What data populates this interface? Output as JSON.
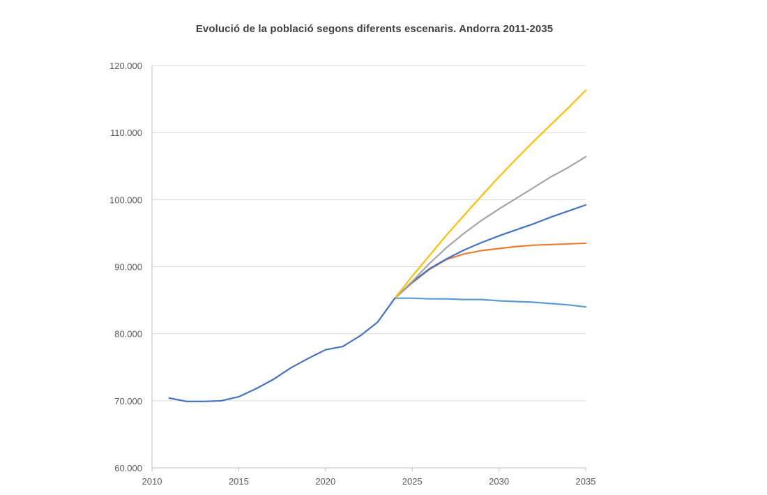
{
  "chart_data": {
    "type": "line",
    "title": "Evolució de la població segons diferents escenaris. Andorra 2011-2035",
    "xlabel": "",
    "ylabel": "",
    "xlim": [
      2010,
      2035
    ],
    "ylim": [
      60000,
      120000
    ],
    "grid": true,
    "legend": "none",
    "x_ticks": [
      2010,
      2015,
      2020,
      2025,
      2030,
      2035
    ],
    "x_tick_labels": [
      "2010",
      "2015",
      "2020",
      "2025",
      "2030",
      "2035"
    ],
    "y_ticks": [
      60000,
      70000,
      80000,
      90000,
      100000,
      110000,
      120000
    ],
    "y_tick_labels": [
      "60.000",
      "70.000",
      "80.000",
      "90.000",
      "100.000",
      "110.000",
      "120.000"
    ],
    "series": [
      {
        "color": "#4472c4",
        "x": [
          2011,
          2012,
          2013,
          2014,
          2015,
          2016,
          2017,
          2018,
          2019,
          2020,
          2021,
          2022,
          2023,
          2024
        ],
        "values": [
          70400,
          69900,
          69900,
          70000,
          70600,
          71800,
          73200,
          74900,
          76300,
          77600,
          78100,
          79700,
          81700,
          85300
        ]
      },
      {
        "color": "#ffc000",
        "x": [
          2024,
          2025,
          2026,
          2027,
          2028,
          2029,
          2030,
          2031,
          2032,
          2033,
          2034,
          2035
        ],
        "values": [
          85300,
          88600,
          91700,
          94800,
          97700,
          100600,
          103400,
          106100,
          108700,
          111200,
          113700,
          116300
        ]
      },
      {
        "color": "#a5a5a5",
        "x": [
          2024,
          2025,
          2026,
          2027,
          2028,
          2029,
          2030,
          2031,
          2032,
          2033,
          2034,
          2035
        ],
        "values": [
          85300,
          87800,
          90500,
          92900,
          95000,
          96900,
          98600,
          100200,
          101800,
          103400,
          104800,
          106400
        ]
      },
      {
        "color": "#4472c4",
        "x": [
          2024,
          2025,
          2026,
          2027,
          2028,
          2029,
          2030,
          2031,
          2032,
          2033,
          2034,
          2035
        ],
        "values": [
          85300,
          87700,
          89700,
          91200,
          92500,
          93600,
          94600,
          95500,
          96400,
          97400,
          98300,
          99200
        ]
      },
      {
        "color": "#ed7d31",
        "x": [
          2024,
          2025,
          2026,
          2027,
          2028,
          2029,
          2030,
          2031,
          2032,
          2033,
          2034,
          2035
        ],
        "values": [
          85300,
          87600,
          89600,
          91100,
          91900,
          92400,
          92700,
          93000,
          93200,
          93300,
          93400,
          93500
        ]
      },
      {
        "color": "#5b9bd5",
        "x": [
          2024,
          2025,
          2026,
          2027,
          2028,
          2029,
          2030,
          2031,
          2032,
          2033,
          2034,
          2035
        ],
        "values": [
          85300,
          85300,
          85200,
          85200,
          85100,
          85100,
          84900,
          84800,
          84700,
          84500,
          84300,
          84000
        ]
      }
    ]
  }
}
